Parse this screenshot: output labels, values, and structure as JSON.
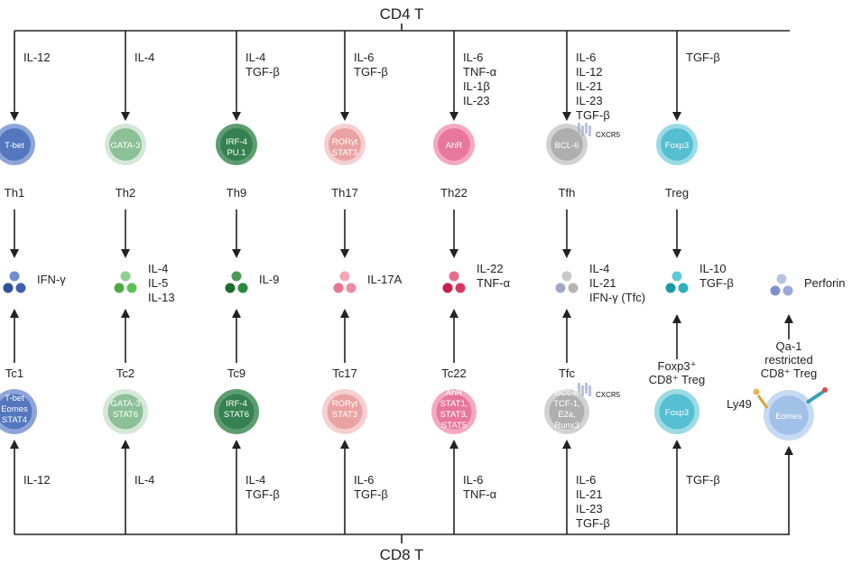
{
  "title_top": "CD4 T",
  "title_bottom": "CD8 T",
  "cd4": [
    {
      "cytokines": [
        "IL-12"
      ],
      "tf": [
        "T-bet"
      ],
      "name": "Th1",
      "products": [
        "IFN-γ"
      ],
      "color": "#4a6fb8",
      "light": "#8ea5da",
      "dots": [
        "#6f8ed0",
        "#2e4f99",
        "#3f61ad"
      ]
    },
    {
      "cytokines": [
        "IL-4"
      ],
      "tf": [
        "GATA-3"
      ],
      "name": "Th2",
      "products": [
        "IL-4",
        "IL-5",
        "IL-13"
      ],
      "color": "#7fb88c",
      "light": "#d5e8d8",
      "dots": [
        "#8fd08c",
        "#4caa44",
        "#5cbf55"
      ]
    },
    {
      "cytokines": [
        "IL-4",
        "TGF-β"
      ],
      "tf": [
        "IRF-4",
        "PU.1"
      ],
      "name": "Th9",
      "products": [
        "IL-9"
      ],
      "color": "#2e7d4b",
      "light": "#5d9d70",
      "dots": [
        "#4c9a5a",
        "#1c6b2f",
        "#2a8a3c"
      ]
    },
    {
      "cytokines": [
        "IL-6",
        "TGF-β"
      ],
      "tf": [
        "RORγt",
        "STAT3"
      ],
      "name": "Th17",
      "products": [
        "IL-17A"
      ],
      "color": "#e99a9a",
      "light": "#f6d0d0",
      "dots": [
        "#f4a8b8",
        "#e8768e",
        "#f08aa0"
      ]
    },
    {
      "cytokines": [
        "IL-6",
        "TNF-α",
        "IL-1β",
        "IL-23"
      ],
      "tf": [
        "AhR"
      ],
      "name": "Th22",
      "products": [
        "IL-22",
        "TNF-α"
      ],
      "color": "#e46f95",
      "light": "#f4a9c0",
      "dots": [
        "#ea6a8a",
        "#c8224e",
        "#d8385f"
      ]
    },
    {
      "cytokines": [
        "IL-6",
        "IL-12",
        "IL-21",
        "IL-23",
        "TGF-β"
      ],
      "tf": [
        "BCL-6"
      ],
      "name": "Tfh",
      "products": [
        "IL-4",
        "IL-21",
        "IFN-γ (Tfc)"
      ],
      "color": "#a9a9a9",
      "light": "#d2d2d2",
      "dots": [
        "#c8c8c8",
        "#a0a8c8",
        "#b5b5b5"
      ],
      "receptor": "CXCR5"
    },
    {
      "cytokines": [
        "TGF-β"
      ],
      "tf": [
        "Foxp3"
      ],
      "name": "Treg",
      "products": [
        "IL-10",
        "TGF-β"
      ],
      "color": "#49b9cc",
      "light": "#9adbe6",
      "dots": [
        "#5ccbd6",
        "#1a9aa8",
        "#2fb0bc"
      ]
    }
  ],
  "cd8": [
    {
      "cytokines": [
        "IL-12"
      ],
      "tf": [
        "T-bet",
        "Eomes",
        "STAT4"
      ],
      "name": "Tc1",
      "color": "#4a6fb8",
      "light": "#8ea5da"
    },
    {
      "cytokines": [
        "IL-4"
      ],
      "tf": [
        "GATA-3",
        "STAT6"
      ],
      "name": "Tc2",
      "color": "#7fb88c",
      "light": "#d5e8d8"
    },
    {
      "cytokines": [
        "IL-4",
        "TGF-β"
      ],
      "tf": [
        "IRF-4",
        "STAT6"
      ],
      "name": "Tc9",
      "color": "#2e7d4b",
      "light": "#5d9d70"
    },
    {
      "cytokines": [
        "IL-6",
        "TGF-β"
      ],
      "tf": [
        "RORγt",
        "STAT3"
      ],
      "name": "Tc17",
      "color": "#e99a9a",
      "light": "#f6d0d0"
    },
    {
      "cytokines": [
        "IL-6",
        "TNF-α"
      ],
      "tf": [
        "AhR",
        "STAT1,",
        "STAT3,",
        "STAT5"
      ],
      "name": "Tc22",
      "color": "#e46f95",
      "light": "#f4a9c0"
    },
    {
      "cytokines": [
        "IL-6",
        "IL-21",
        "IL-23",
        "TGF-β"
      ],
      "tf": [
        "BCL-6",
        "TCF-1,",
        "E2a,",
        "Runx3"
      ],
      "name": "Tfc",
      "color": "#a9a9a9",
      "light": "#d2d2d2",
      "receptor": "CXCR5"
    },
    {
      "cytokines": [
        "TGF-β"
      ],
      "tf": [
        "Foxp3"
      ],
      "name_lines": [
        "Foxp3⁺",
        "CD8⁺ Treg"
      ],
      "color": "#49b9cc",
      "light": "#9adbe6"
    },
    {
      "cytokines": [],
      "tf": [
        "Eomes"
      ],
      "name_lines": [
        "Qa-1",
        "restricted",
        "CD8⁺ Treg"
      ],
      "receptor": "Ly49",
      "color": "#9bbce6",
      "light": "#c7daf3"
    }
  ],
  "perforin": {
    "label": "Perforin",
    "dots": [
      "#b8c3e8",
      "#7f92cf",
      "#9aa8db"
    ]
  }
}
